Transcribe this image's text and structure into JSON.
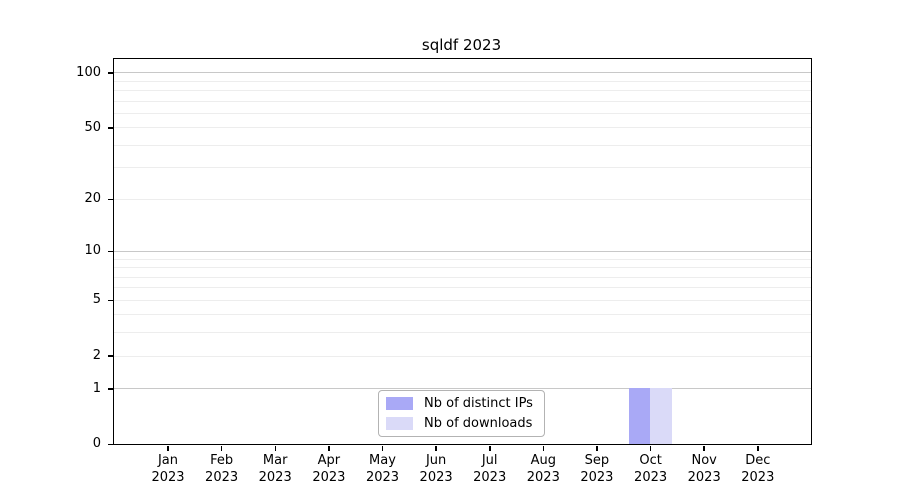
{
  "chart_data": {
    "type": "bar",
    "title": "sqldf 2023",
    "categories": [
      "Jan 2023",
      "Feb 2023",
      "Mar 2023",
      "Apr 2023",
      "May 2023",
      "Jun 2023",
      "Jul 2023",
      "Aug 2023",
      "Sep 2023",
      "Oct 2023",
      "Nov 2023",
      "Dec 2023"
    ],
    "series": [
      {
        "name": "Nb of distinct IPs",
        "color": "#a9a9f6",
        "values": [
          0,
          0,
          0,
          0,
          0,
          0,
          0,
          0,
          0,
          1,
          0,
          0
        ]
      },
      {
        "name": "Nb of downloads",
        "color": "#dadaf8",
        "values": [
          0,
          0,
          0,
          0,
          0,
          0,
          0,
          0,
          0,
          1,
          0,
          0
        ]
      }
    ],
    "yscale": "log1p",
    "ylim": [
      0,
      118
    ],
    "yticks": [
      0,
      1,
      2,
      5,
      10,
      20,
      50,
      100
    ],
    "major_gridlines": [
      1,
      10,
      100
    ],
    "minor_gridlines": [
      2,
      3,
      4,
      5,
      6,
      7,
      8,
      9,
      20,
      30,
      40,
      50,
      60,
      70,
      80,
      90
    ],
    "grid": true,
    "legend_position": "bottom-center",
    "colors": {
      "major_grid": "#c8c8c8",
      "minor_grid": "#ededed",
      "frame": "#000000",
      "background": "#ffffff"
    }
  }
}
